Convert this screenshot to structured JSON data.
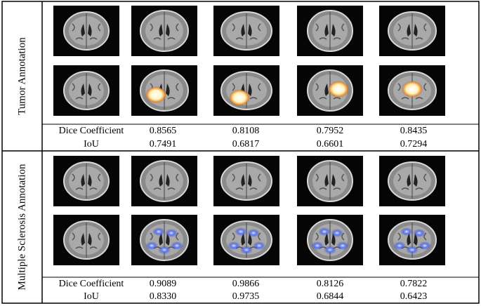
{
  "sections": [
    {
      "label": "Tumor Annotation",
      "metrics": [
        {
          "name": "Dice Coefficient",
          "values": [
            "0.8565",
            "0.8108",
            "0.7952",
            "0.8435"
          ]
        },
        {
          "name": "IoU",
          "values": [
            "0.7491",
            "0.6817",
            "0.6601",
            "0.7294"
          ]
        }
      ]
    },
    {
      "label": "Multiple Sclerosis Annotation",
      "metrics": [
        {
          "name": "Dice Coefficient",
          "values": [
            "0.9089",
            "0.9866",
            "0.8126",
            "0.7822"
          ]
        },
        {
          "name": "IoU",
          "values": [
            "0.8330",
            "0.9735",
            "0.6844",
            "0.6423"
          ]
        }
      ]
    }
  ]
}
